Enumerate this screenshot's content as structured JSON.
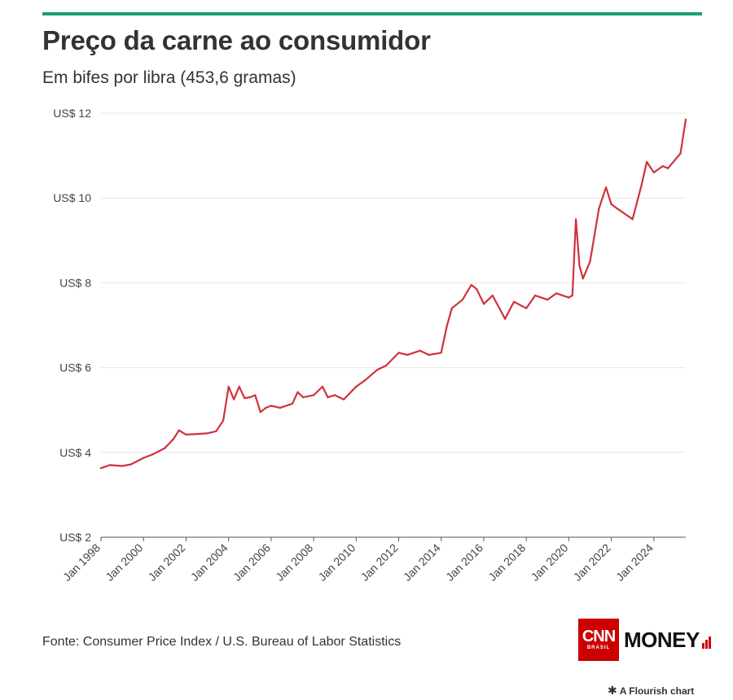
{
  "header": {
    "title": "Preço da carne ao consumidor",
    "subtitle": "Em bifes por libra (453,6 gramas)"
  },
  "footer": {
    "source": "Fonte: Consumer Price Index / U.S. Bureau of Labor Statistics",
    "logo_cnn": "CNN",
    "logo_sub": "BRASIL",
    "logo_money": "MONEY",
    "flourish": "A Flourish chart"
  },
  "colors": {
    "accent_bar": "#1b9e77",
    "line": "#d1323b",
    "grid": "#e6e6e6",
    "logo_red": "#cc0000"
  },
  "chart_data": {
    "type": "line",
    "title": "Preço da carne ao consumidor",
    "subtitle": "Em bifes por libra (453,6 gramas)",
    "xlabel": "",
    "ylabel": "",
    "ylim": [
      2,
      12
    ],
    "xlim": [
      "1998-01",
      "2025-07"
    ],
    "grid": true,
    "legend": "none",
    "y_ticks": [
      2,
      4,
      6,
      8,
      10,
      12
    ],
    "y_tick_labels": [
      "US$ 2",
      "US$ 4",
      "US$ 6",
      "US$ 8",
      "US$ 10",
      "US$ 12"
    ],
    "x_ticks": [
      "1998-01",
      "2000-01",
      "2002-01",
      "2004-01",
      "2006-01",
      "2008-01",
      "2010-01",
      "2012-01",
      "2014-01",
      "2016-01",
      "2018-01",
      "2020-01",
      "2022-01",
      "2024-01"
    ],
    "x_tick_labels": [
      "Jan 1998",
      "Jan 2000",
      "Jan 2002",
      "Jan 2004",
      "Jan 2006",
      "Jan 2008",
      "Jan 2010",
      "Jan 2012",
      "Jan 2014",
      "Jan 2016",
      "Jan 2018",
      "Jan 2020",
      "Jan 2022",
      "Jan 2024"
    ],
    "series": [
      {
        "x": [
          "1998-01",
          "1998-06",
          "1999-01",
          "1999-06",
          "2000-01",
          "2000-06",
          "2001-01",
          "2001-06",
          "2001-09",
          "2002-01",
          "2002-06",
          "2003-01",
          "2003-06",
          "2003-10",
          "2004-01",
          "2004-04",
          "2004-07",
          "2004-10",
          "2005-01",
          "2005-04",
          "2005-07",
          "2005-10",
          "2006-01",
          "2006-06",
          "2007-01",
          "2007-04",
          "2007-07",
          "2008-01",
          "2008-06",
          "2008-09",
          "2009-01",
          "2009-06",
          "2010-01",
          "2010-06",
          "2011-01",
          "2011-06",
          "2012-01",
          "2012-06",
          "2013-01",
          "2013-06",
          "2014-01",
          "2014-04",
          "2014-07",
          "2015-01",
          "2015-06",
          "2015-09",
          "2016-01",
          "2016-06",
          "2017-01",
          "2017-06",
          "2018-01",
          "2018-06",
          "2019-01",
          "2019-06",
          "2020-01",
          "2020-03",
          "2020-05",
          "2020-07",
          "2020-09",
          "2021-01",
          "2021-06",
          "2021-10",
          "2022-01",
          "2022-06",
          "2023-01",
          "2023-06",
          "2023-09",
          "2024-01",
          "2024-06",
          "2024-09",
          "2025-01",
          "2025-04",
          "2025-07"
        ],
        "values": [
          3.63,
          3.7,
          3.68,
          3.72,
          3.87,
          3.95,
          4.1,
          4.32,
          4.52,
          4.42,
          4.43,
          4.45,
          4.5,
          4.75,
          5.55,
          5.25,
          5.55,
          5.28,
          5.3,
          5.35,
          4.95,
          5.05,
          5.1,
          5.05,
          5.15,
          5.42,
          5.3,
          5.35,
          5.55,
          5.3,
          5.35,
          5.25,
          5.55,
          5.7,
          5.95,
          6.05,
          6.35,
          6.3,
          6.4,
          6.3,
          6.35,
          6.95,
          7.4,
          7.6,
          7.95,
          7.85,
          7.5,
          7.7,
          7.15,
          7.55,
          7.4,
          7.7,
          7.6,
          7.75,
          7.65,
          7.7,
          9.5,
          8.4,
          8.1,
          8.5,
          9.75,
          10.25,
          9.85,
          9.7,
          9.5,
          10.3,
          10.85,
          10.6,
          10.75,
          10.7,
          10.9,
          11.05,
          11.85
        ]
      }
    ]
  }
}
